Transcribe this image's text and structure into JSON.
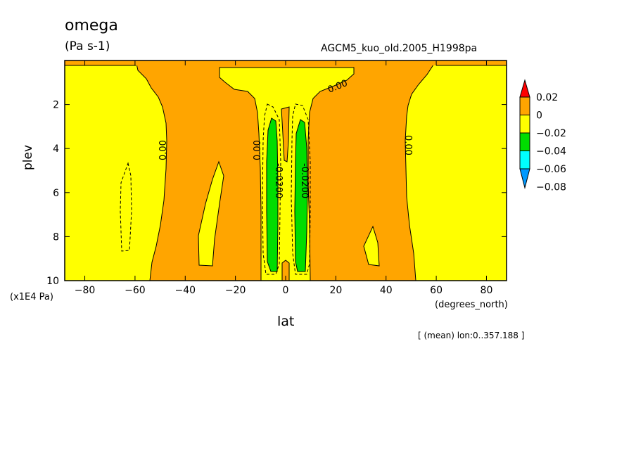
{
  "chart_data": {
    "type": "contour",
    "title": "omega",
    "units": "(Pa s-1)",
    "dataset": "AGCM5_kuo_old.2005_H1998pa",
    "xlabel": "lat",
    "x_unit": "(degrees_north)",
    "ylabel": "plev",
    "y_unit": "(x1E4 Pa)",
    "note": "[ (mean) lon:0..357.188 ]",
    "xlim": [
      -88,
      88
    ],
    "ylim": [
      10,
      0
    ],
    "x_ticks": [
      -80,
      -60,
      -40,
      -20,
      0,
      20,
      40,
      60,
      80
    ],
    "x_tick_labels": [
      "−80",
      "−60",
      "−40",
      "−20",
      "0",
      "20",
      "40",
      "60",
      "80"
    ],
    "y_ticks": [
      2,
      4,
      6,
      8,
      10
    ],
    "y_tick_labels": [
      "2",
      "4",
      "6",
      "8",
      "10"
    ],
    "contour_labels": [
      "0.00",
      "0.00",
      "0.00",
      "0.00",
      "-0.0200",
      "-0.0200"
    ],
    "legend": {
      "levels": [
        "0.02",
        "0",
        "−0.02",
        "−0.04",
        "−0.06",
        "−0.08"
      ],
      "colors": [
        "#ff0000",
        "#ffa500",
        "#ffff00",
        "#00dd00",
        "#00ffff",
        "#0099ff"
      ]
    },
    "colors": {
      "positive": "#ffa500",
      "weak_negative": "#ffff00",
      "moderate_negative": "#00dd00"
    }
  }
}
